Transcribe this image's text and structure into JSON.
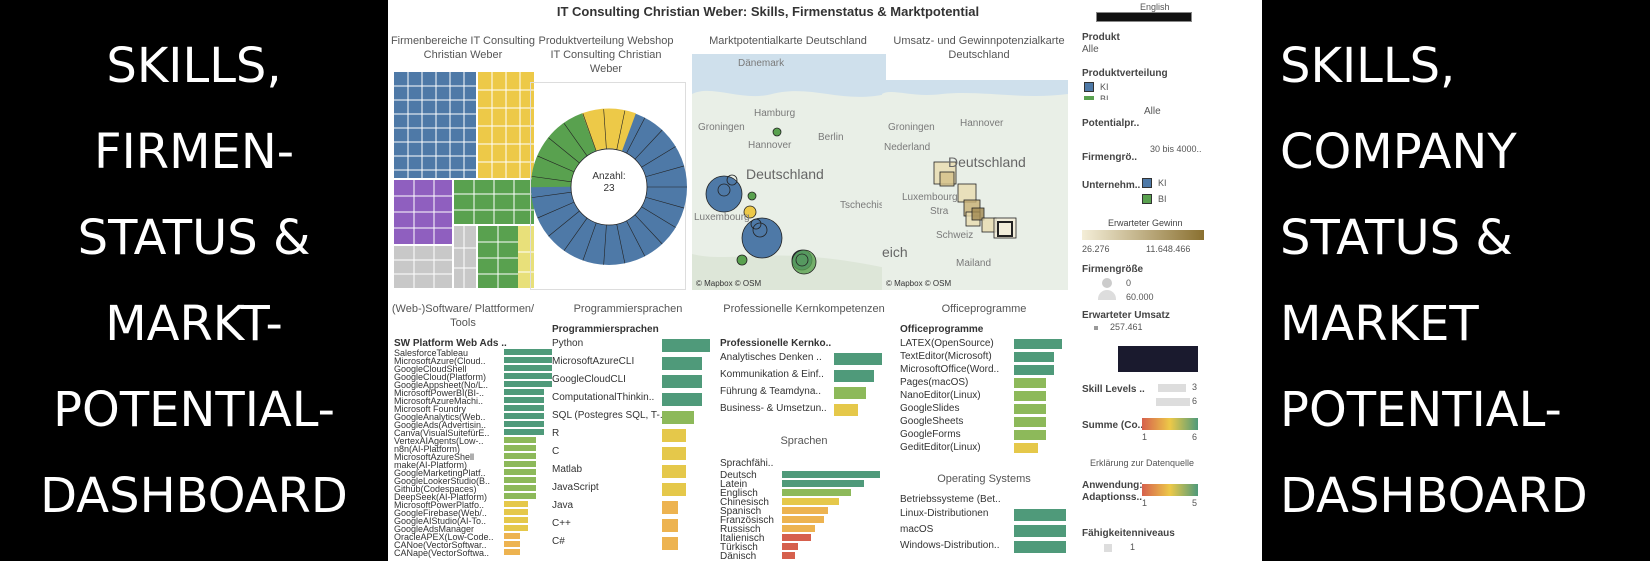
{
  "left_banner": {
    "lines": [
      "SKILLS,",
      "FIRMEN-",
      "STATUS &",
      "MARKT-",
      "POTENTIAL-",
      "DASHBOARD"
    ]
  },
  "right_banner": {
    "lines": [
      "SKILLS,",
      "COMPANY",
      "STATUS &",
      "MARKET",
      "POTENTIAL-",
      "DASHBOARD"
    ]
  },
  "dashboard": {
    "title": "IT Consulting Christian Weber: Skills, Firmenstatus & Marktpotential",
    "panels": {
      "treemap": "Firmenbereiche IT Consulting Christian Weber",
      "donut": "Produktverteilung Webshop IT Consulting Christian Weber",
      "map1": "Marktpotentialkarte Deutschland",
      "map2": "Umsatz- und Gewinnpotenzialkarte Deutschland",
      "software": "(Web-)Software/ Plattformen/ Tools",
      "prog": "Programmiersprachen",
      "prof": "Professionelle Kernkompetenzen",
      "office": "Officeprogramme",
      "sprachen": "Sprachen",
      "os": "Operating Systems"
    },
    "donut_center": {
      "label": "Anzahl:",
      "value": "23"
    },
    "map1_labels": {
      "daenemark": "Dänemark",
      "groningen": "Groningen",
      "hamburg": "Hamburg",
      "hannover": "Hannover",
      "berlin": "Berlin",
      "deutschland": "Deutschland",
      "tschechis": "Tschechis",
      "luxembourg": "Luxembourg",
      "credit": "© Mapbox © OSM"
    },
    "map2_labels": {
      "groningen": "Groningen",
      "hannover": "Hannover",
      "nederland": "Nederland",
      "deutschland": "Deutschland",
      "luxembourg": "Luxembourg",
      "schweiz": "Schweiz",
      "mailand": "Mailand",
      "eich": "eich",
      "stra": "Stra",
      "credit": "© Mapbox © OSM"
    },
    "software": {
      "header": "SW Platform Web Ads ..",
      "items": [
        "SalesforceTableau",
        "MicrosoftAzure(Cloud..",
        "GoogleCloudShell",
        "GoogleCloud(Platform)",
        "GoogleAppsheet(No/L..",
        "MicrosoftPowerBI(BI-..",
        "MicrosoftAzureMachi..",
        "Microsoft Foundry",
        "GoogleAnalytics(Web..",
        "GoogleAds(Advertisin..",
        "Canva(VisualSuitefürE..",
        "VertexAIAgents(Low-..",
        "n8n(AI-Platform)",
        "MicrosoftAzureShell",
        "make(AI-Platform)",
        "GoogleMarketingPlatf..",
        "GoogleLookerStudio(B..",
        "Github(Codespaces)",
        "DeepSeek(AI-Platform)",
        "MicrosoftPowerPlatfo..",
        "GoogleFirebase(Web/..",
        "GoogleAIStudio(AI-To..",
        "GoogleAdsManager",
        "OracleAPEX(Low-Code..",
        "CANoe(VectorSoftwar..",
        "CANape(VectorSoftwa.."
      ],
      "levels": [
        6,
        6,
        6,
        6,
        6,
        5,
        5,
        5,
        5,
        5,
        5,
        4,
        4,
        4,
        4,
        4,
        4,
        4,
        4,
        3,
        3,
        3,
        3,
        2,
        2,
        2
      ]
    },
    "prog": {
      "header": "Programmiersprachen",
      "items": [
        "Python",
        "MicrosoftAzureCLI",
        "GoogleCloudCLI",
        "ComputationalThinkin..",
        "SQL (Postegres SQL, T-..",
        "R",
        "C",
        "Matlab",
        "JavaScript",
        "Java",
        "C++",
        "C#"
      ],
      "levels": [
        6,
        5,
        5,
        5,
        4,
        3,
        3,
        3,
        3,
        2,
        2,
        2
      ]
    },
    "prof": {
      "header": "Professionelle Kernko..",
      "items": [
        "Analytisches Denken ..",
        "Kommunikation & Einf..",
        "Führung & Teamdyna..",
        "Business- & Umsetzun.."
      ],
      "levels": [
        6,
        5,
        4,
        3
      ]
    },
    "office": {
      "header": "Officeprogramme",
      "items": [
        "LATEX(OpenSource)",
        "TextEditor(Microsoft)",
        "MicrosoftOffice(Word..",
        "Pages(macOS)",
        "NanoEditor(Linux)",
        "GoogleSlides",
        "GoogleSheets",
        "GoogleForms",
        "GeditEditor(Linux)"
      ],
      "levels": [
        6,
        5,
        5,
        4,
        4,
        4,
        4,
        4,
        3
      ]
    },
    "sprachen": {
      "header": "Sprachfähi..",
      "items": [
        "Deutsch",
        "Latein",
        "Englisch",
        "Chinesisch",
        "Spanisch",
        "Französisch",
        "Russisch",
        "Italienisch",
        "Türkisch",
        "Dänisch"
      ],
      "levels": [
        6,
        5,
        4.2,
        3.5,
        2.8,
        2.6,
        2,
        1.8,
        1,
        0.8
      ]
    },
    "os": {
      "header": "Betriebssysteme (Bet..",
      "items": [
        "Linux-Distributionen",
        "macOS",
        "Windows-Distribution.."
      ],
      "levels": [
        6,
        6,
        6
      ]
    },
    "filters": {
      "language": "English",
      "produkt_label": "Produkt",
      "produkt_value": "Alle",
      "produktverteilung_label": "Produktverteilung",
      "pv_items": [
        "KI",
        "BI"
      ],
      "potential_label": "Potentialpr..",
      "potential_value": "Alle",
      "firmengroesse_label": "Firmengrö..",
      "firmengroesse_value": "30 bis 4000..",
      "unternehmen_label": "Unternehm..",
      "unternehmen_items": [
        "KI",
        "BI"
      ],
      "gewinn_label": "Erwarteter Gewinn",
      "gewinn_min": "26.276",
      "gewinn_max": "11.648.466",
      "firmengroesse2_label": "Firmengröße",
      "fg_min": "0",
      "fg_max": "60.000",
      "umsatz_label": "Erwarteter Umsatz",
      "umsatz_value": "257.461",
      "skill_label": "Skill Levels ..",
      "skill_vals": [
        "3",
        "6"
      ],
      "summe_label": "Summe (Co..",
      "summe_min": "1",
      "summe_max": "6",
      "erklaerung": "Erklärung zur Datenquelle",
      "anwendung_label": "Anwendung: Adaptionss..",
      "anw_min": "1",
      "anw_max": "5",
      "faehigkeit_label": "Fähigkeitenniveaus",
      "faehigkeit_value": "1"
    },
    "colors": {
      "ki": "#4e79a7",
      "bi": "#59a14f",
      "purple": "#8f5fbf",
      "yellow": "#edc948",
      "gray": "#c8c8c8",
      "teal": "#4f9a7a"
    }
  }
}
